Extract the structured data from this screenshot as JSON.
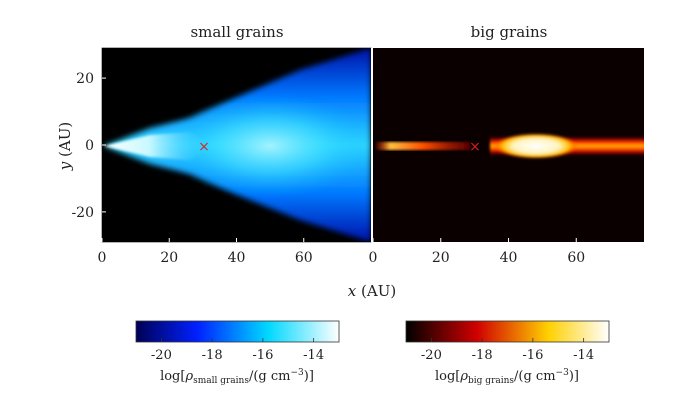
{
  "chart_data": [
    {
      "type": "heatmap",
      "title": "small grains",
      "xlabel": "x (AU)",
      "ylabel": "y (AU)",
      "xlim": [
        0,
        80
      ],
      "ylim": [
        -29,
        29
      ],
      "xticks": [
        "0",
        "20",
        "40",
        "60"
      ],
      "yticks": [
        "20",
        "0",
        "-20"
      ],
      "colormap": "blue-cyan-white",
      "marker": {
        "symbol": "×",
        "x": 30,
        "y": 0,
        "color": "#e0201a"
      },
      "colorbar": {
        "label": "log[ρsmall grains/(g cm−3)]",
        "ticks": [
          "-20",
          "-18",
          "-16",
          "-14"
        ],
        "range": [
          -21,
          -13
        ]
      }
    },
    {
      "type": "heatmap",
      "title": "big grains",
      "xlabel": "x (AU)",
      "ylabel": "",
      "xlim": [
        0,
        80
      ],
      "ylim": [
        -29,
        29
      ],
      "xticks": [
        "0",
        "20",
        "40",
        "60"
      ],
      "colormap": "hot",
      "marker": {
        "symbol": "×",
        "x": 30,
        "y": 0,
        "color": "#e0201a"
      },
      "colorbar": {
        "label": "log[ρbig grains/(g cm−3)]",
        "ticks": [
          "-20",
          "-18",
          "-16",
          "-14"
        ],
        "range": [
          -21,
          -13
        ]
      }
    }
  ],
  "labels": {
    "title_left": "small grains",
    "title_right": "big grains",
    "xaxis": "x (AU)",
    "yaxis": "y (AU)",
    "cb_left_rho": "ρ",
    "cb_left_sub": "small grains",
    "cb_right_rho": "ρ",
    "cb_right_sub": "big grains",
    "cb_prefix": "log[",
    "cb_units": "/(g cm",
    "cb_exp": "−3",
    "cb_suffix": ")]",
    "x_var": "x",
    "x_unit": "(AU)",
    "y_var": "y",
    "y_unit": "(AU)"
  },
  "colors": {
    "marker": "#e0201a",
    "small_cmap": [
      "#000066",
      "#0033ff",
      "#00c8ff",
      "#ffffff"
    ],
    "big_cmap": [
      "#000000",
      "#d00000",
      "#ffcc00",
      "#ffffff"
    ]
  }
}
